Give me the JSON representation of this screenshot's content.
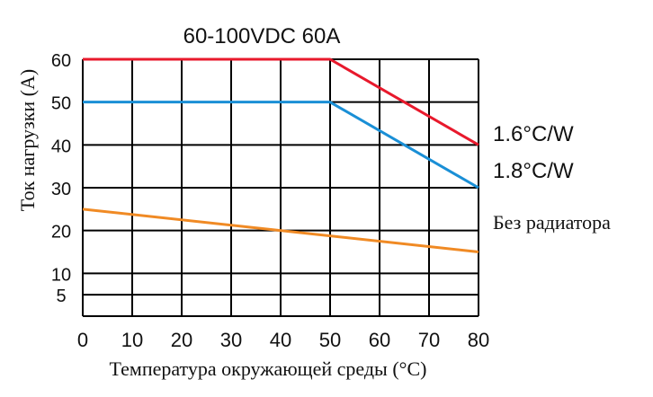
{
  "chart_data": {
    "type": "line",
    "title": "60-100VDC 60A",
    "xlabel": "Температура окружающей среды (°C)",
    "ylabel": "Ток нагрузки (A)",
    "x_ticks": [
      0,
      10,
      20,
      30,
      40,
      50,
      60,
      70,
      80
    ],
    "y_ticks": [
      5,
      10,
      20,
      30,
      40,
      50,
      60
    ],
    "xlim": [
      0,
      80
    ],
    "ylim": [
      0,
      60
    ],
    "grid": true,
    "legend": "right-inline",
    "series": [
      {
        "name": "1.6°C/W",
        "color": "#e8192c",
        "x": [
          0,
          50,
          80
        ],
        "y": [
          60,
          60,
          40
        ]
      },
      {
        "name": "1.8°C/W",
        "color": "#1a8fd6",
        "x": [
          0,
          50,
          80
        ],
        "y": [
          50,
          50,
          30
        ]
      },
      {
        "name": "Без радиатора",
        "color": "#f08a24",
        "x": [
          0,
          80
        ],
        "y": [
          25,
          15
        ]
      }
    ]
  }
}
